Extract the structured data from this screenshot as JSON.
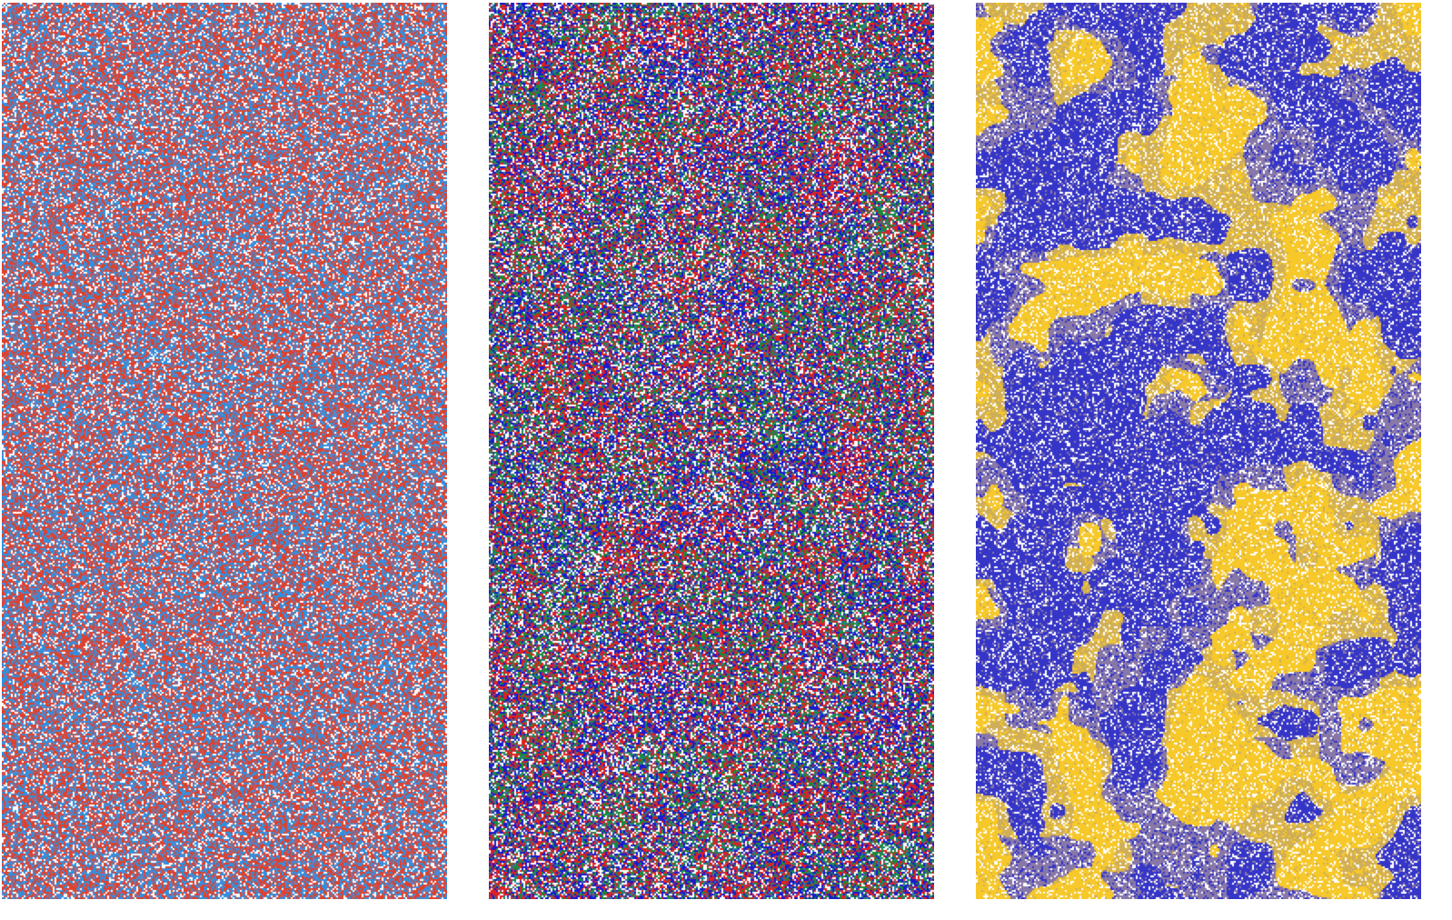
{
  "panels": [
    {
      "name": "lattice-panel-two-species",
      "palette": {
        "background": "#8a7aa0",
        "species": [
          "#e0402a",
          "#2f8fe0",
          "#ffffff",
          "#c7555a",
          "#5a86c8"
        ]
      },
      "clustering": "none"
    },
    {
      "name": "lattice-panel-four-species",
      "palette": {
        "background": "#4a5a8a",
        "species": [
          "#e02020",
          "#1a1ad0",
          "#1a8a3a",
          "#ffffff",
          "#2a7aa0",
          "#8a3a6a"
        ]
      },
      "clustering": "weak"
    },
    {
      "name": "lattice-panel-domains",
      "palette": {
        "background": "#b59a6a",
        "species": [
          "#f7c82a",
          "#3535c8",
          "#ffffff",
          "#8878a8",
          "#cfae58"
        ]
      },
      "clustering": "strong"
    }
  ]
}
